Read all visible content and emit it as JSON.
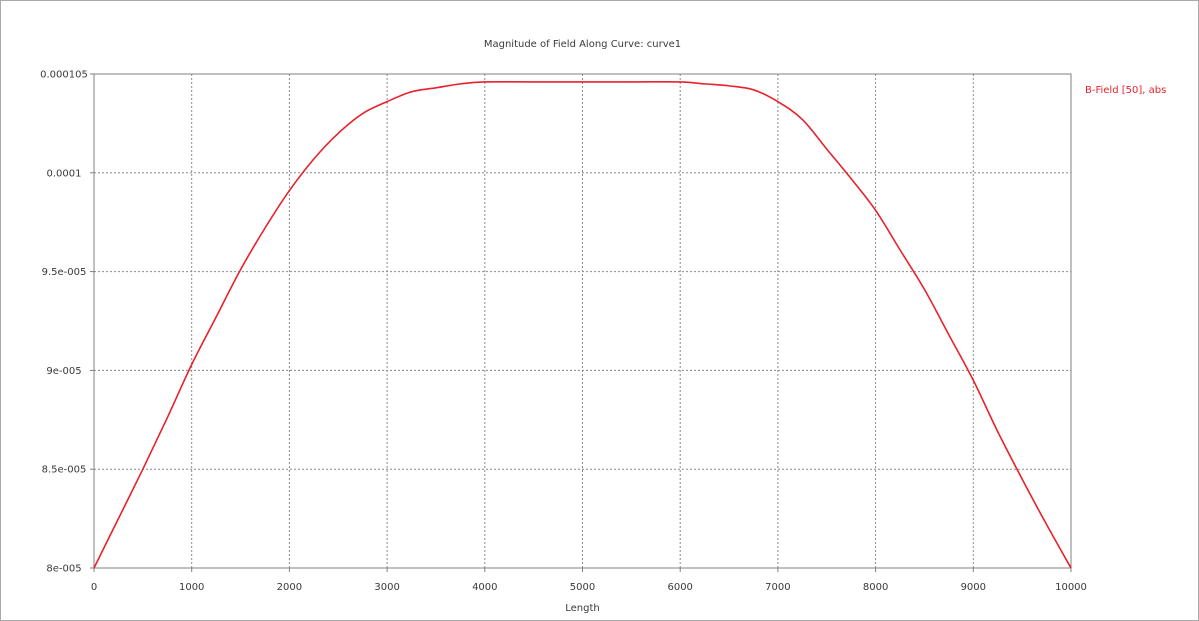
{
  "chart_data": {
    "type": "line",
    "title": "Magnitude of Field Along Curve: curve1",
    "xlabel": "Length",
    "ylabel": "",
    "xlim": [
      0,
      10000
    ],
    "ylim": [
      8e-05,
      0.000105
    ],
    "x_ticks": [
      {
        "value": 0,
        "label": "0"
      },
      {
        "value": 1000,
        "label": "1000"
      },
      {
        "value": 2000,
        "label": "2000"
      },
      {
        "value": 3000,
        "label": "3000"
      },
      {
        "value": 4000,
        "label": "4000"
      },
      {
        "value": 5000,
        "label": "5000"
      },
      {
        "value": 6000,
        "label": "6000"
      },
      {
        "value": 7000,
        "label": "7000"
      },
      {
        "value": 8000,
        "label": "8000"
      },
      {
        "value": 9000,
        "label": "9000"
      },
      {
        "value": 10000,
        "label": "10000"
      }
    ],
    "y_ticks": [
      {
        "value": 8e-05,
        "label": "8e-005"
      },
      {
        "value": 8.5e-05,
        "label": "8.5e-005"
      },
      {
        "value": 9e-05,
        "label": "9e-005"
      },
      {
        "value": 9.5e-05,
        "label": "9.5e-005"
      },
      {
        "value": 0.0001,
        "label": "0.0001"
      },
      {
        "value": 0.000105,
        "label": "0.000105"
      }
    ],
    "grid": true,
    "legend_position": "right",
    "colors": {
      "line": "#e8212b",
      "grid": "#8a8a8a",
      "axis": "#808080"
    },
    "series": [
      {
        "name": "B-Field [50], abs",
        "x": [
          0,
          250,
          500,
          750,
          1000,
          1250,
          1500,
          1750,
          2000,
          2250,
          2500,
          2750,
          3000,
          3250,
          3500,
          3750,
          4000,
          4500,
          5000,
          5500,
          6000,
          6250,
          6500,
          6750,
          7000,
          7250,
          7500,
          7750,
          8000,
          8250,
          8500,
          8750,
          9000,
          9250,
          9500,
          9750,
          10000
        ],
        "y": [
          8e-05,
          8.25e-05,
          8.5e-05,
          8.76e-05,
          9.03e-05,
          9.27e-05,
          9.51e-05,
          9.72e-05,
          9.91e-05,
          0.0001007,
          0.000102,
          0.000103,
          0.0001036,
          0.0001041,
          0.0001043,
          0.0001045,
          0.0001046,
          0.0001046,
          0.0001046,
          0.0001046,
          0.0001046,
          0.0001045,
          0.0001044,
          0.0001042,
          0.0001036,
          0.0001027,
          0.0001012,
          9.97e-05,
          9.81e-05,
          9.61e-05,
          9.41e-05,
          9.18e-05,
          8.95e-05,
          8.69e-05,
          8.45e-05,
          8.22e-05,
          8e-05
        ]
      }
    ]
  }
}
